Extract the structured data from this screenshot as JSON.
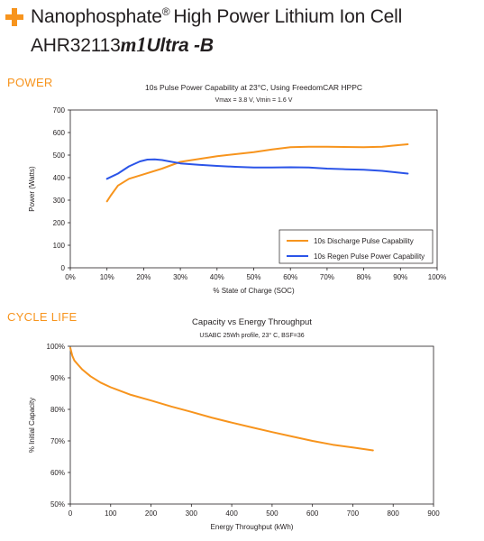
{
  "header": {
    "title_line1": "Nanophosphate",
    "title_reg": "®",
    "title_line1_rest": "High Power Lithium Ion Cell",
    "model_prefix": "AHR32113",
    "model_m1": "m1",
    "model_suffix": "Ultra -B"
  },
  "sections": {
    "power": "POWER",
    "cycle_life": "CYCLE LIFE"
  },
  "colors": {
    "accent": "#f7941d",
    "orange_series": "#f7941d",
    "blue_series": "#2b54e8"
  },
  "chart_data": [
    {
      "type": "line",
      "title": "10s Pulse Power Capability at 23°C, Using FreedomCAR HPPC",
      "subtitle": "Vmax = 3.8 V, Vmin = 1.6 V",
      "xlabel": "% State of Charge (SOC)",
      "ylabel": "Power (Watts)",
      "xlim": [
        0,
        100
      ],
      "ylim": [
        0,
        700
      ],
      "x_ticks": [
        0,
        10,
        20,
        30,
        40,
        50,
        60,
        70,
        80,
        90,
        100
      ],
      "x_tick_labels": [
        "0%",
        "10%",
        "20%",
        "30%",
        "40%",
        "50%",
        "60%",
        "70%",
        "80%",
        "90%",
        "100%"
      ],
      "y_ticks": [
        0,
        100,
        200,
        300,
        400,
        500,
        600,
        700
      ],
      "y_tick_labels": [
        "0",
        "100",
        "200",
        "300",
        "400",
        "500",
        "600",
        "700"
      ],
      "grid": false,
      "legend_position": "bottom-right",
      "series": [
        {
          "name": "10s Discharge Pulse Capability",
          "color": "#f7941d",
          "x": [
            10,
            11,
            13,
            16,
            20,
            25,
            30,
            40,
            50,
            55,
            60,
            65,
            70,
            80,
            85,
            88,
            92
          ],
          "y": [
            295,
            320,
            365,
            395,
            415,
            440,
            470,
            495,
            513,
            525,
            535,
            537,
            537,
            535,
            537,
            542,
            548
          ]
        },
        {
          "name": "10s Regen Pulse Power Capability",
          "color": "#2b54e8",
          "x": [
            10,
            13,
            16,
            19,
            21,
            23,
            25,
            27,
            30,
            35,
            40,
            45,
            50,
            55,
            60,
            65,
            70,
            75,
            80,
            85,
            92
          ],
          "y": [
            395,
            418,
            450,
            472,
            480,
            481,
            478,
            472,
            463,
            457,
            452,
            448,
            445,
            445,
            446,
            445,
            440,
            437,
            435,
            430,
            418
          ]
        }
      ]
    },
    {
      "type": "line",
      "title": "Capacity vs Energy Throughput",
      "subtitle": "USABC 25Wh profile, 23° C, BSF=36",
      "xlabel": "Energy Throughput (kWh)",
      "ylabel": "% Initial Capacity",
      "xlim": [
        0,
        900
      ],
      "ylim": [
        50,
        100
      ],
      "x_ticks": [
        0,
        100,
        200,
        300,
        400,
        500,
        600,
        700,
        800,
        900
      ],
      "x_tick_labels": [
        "0",
        "100",
        "200",
        "300",
        "400",
        "500",
        "600",
        "700",
        "800",
        "900"
      ],
      "y_ticks": [
        50,
        60,
        70,
        80,
        90,
        100
      ],
      "y_tick_labels": [
        "50%",
        "60%",
        "70%",
        "80%",
        "90%",
        "100%"
      ],
      "grid": false,
      "series": [
        {
          "color": "#f7941d",
          "x": [
            0,
            5,
            10,
            20,
            30,
            50,
            75,
            100,
            150,
            200,
            250,
            300,
            350,
            400,
            450,
            500,
            550,
            600,
            650,
            700,
            750
          ],
          "y": [
            99.5,
            97,
            95.5,
            94,
            92.6,
            90.5,
            88.5,
            87,
            84.6,
            82.8,
            80.9,
            79.2,
            77.4,
            75.8,
            74.3,
            72.8,
            71.4,
            70,
            68.8,
            67.9,
            67
          ]
        }
      ]
    }
  ]
}
